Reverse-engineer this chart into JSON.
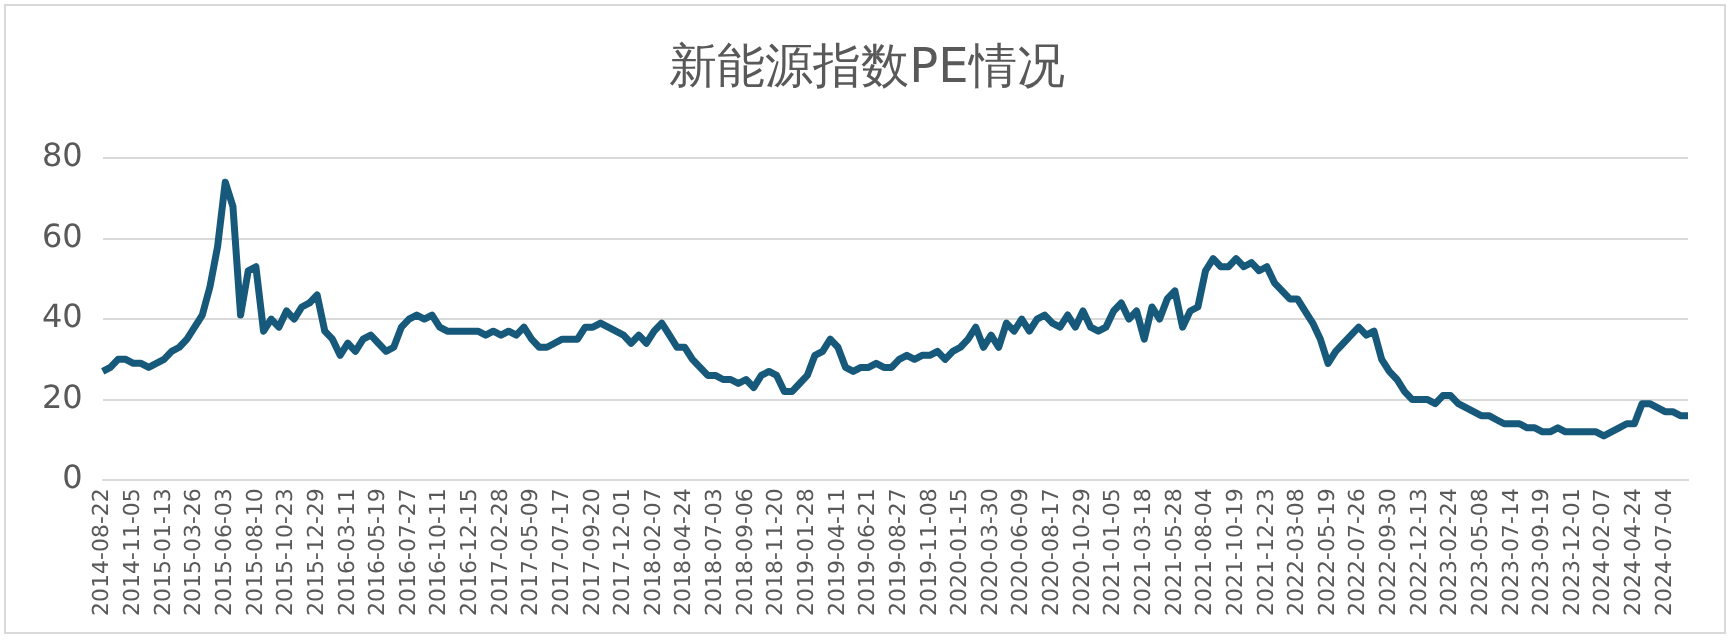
{
  "chart_data": {
    "type": "line",
    "title": "新能源指数PE情况",
    "categories": [
      "2014-08-22",
      null,
      null,
      null,
      "2014-11-05",
      null,
      null,
      null,
      "2015-01-13",
      null,
      null,
      null,
      "2015-03-26",
      null,
      null,
      null,
      "2015-06-03",
      null,
      null,
      null,
      "2015-08-10",
      null,
      null,
      null,
      "2015-10-23",
      null,
      null,
      null,
      "2015-12-29",
      null,
      null,
      null,
      "2016-03-11",
      null,
      null,
      null,
      "2016-05-19",
      null,
      null,
      null,
      "2016-07-27",
      null,
      null,
      null,
      "2016-10-11",
      null,
      null,
      null,
      "2016-12-15",
      null,
      null,
      null,
      "2017-02-28",
      null,
      null,
      null,
      "2017-05-09",
      null,
      null,
      null,
      "2017-07-17",
      null,
      null,
      null,
      "2017-09-20",
      null,
      null,
      null,
      "2017-12-01",
      null,
      null,
      null,
      "2018-02-07",
      null,
      null,
      null,
      "2018-04-24",
      null,
      null,
      null,
      "2018-07-03",
      null,
      null,
      null,
      "2018-09-06",
      null,
      null,
      null,
      "2018-11-20",
      null,
      null,
      null,
      "2019-01-28",
      null,
      null,
      null,
      "2019-04-11",
      null,
      null,
      null,
      "2019-06-21",
      null,
      null,
      null,
      "2019-08-27",
      null,
      null,
      null,
      "2019-11-08",
      null,
      null,
      null,
      "2020-01-15",
      null,
      null,
      null,
      "2020-03-30",
      null,
      null,
      null,
      "2020-06-09",
      null,
      null,
      null,
      "2020-08-17",
      null,
      null,
      null,
      "2020-10-29",
      null,
      null,
      null,
      "2021-01-05",
      null,
      null,
      null,
      "2021-03-18",
      null,
      null,
      null,
      "2021-05-28",
      null,
      null,
      null,
      "2021-08-04",
      null,
      null,
      null,
      "2021-10-19",
      null,
      null,
      null,
      "2021-12-23",
      null,
      null,
      null,
      "2022-03-08",
      null,
      null,
      null,
      "2022-05-19",
      null,
      null,
      null,
      "2022-07-26",
      null,
      null,
      null,
      "2022-09-30",
      null,
      null,
      null,
      "2022-12-13",
      null,
      null,
      null,
      "2023-02-24",
      null,
      null,
      null,
      "2023-05-08",
      null,
      null,
      null,
      "2023-07-14",
      null,
      null,
      null,
      "2023-09-19",
      null,
      null,
      null,
      "2023-12-01",
      null,
      null,
      null,
      "2024-02-07",
      null,
      null,
      null,
      "2024-04-24",
      null,
      null,
      null,
      "2024-07-04",
      null,
      null,
      null
    ],
    "series": [
      {
        "color": "#16597a",
        "values": [
          27,
          28,
          30,
          30,
          29,
          29,
          28,
          29,
          30,
          32,
          33,
          35,
          38,
          41,
          48,
          58,
          74,
          68,
          41,
          52,
          53,
          37,
          40,
          38,
          42,
          40,
          43,
          44,
          46,
          37,
          35,
          31,
          34,
          32,
          35,
          36,
          34,
          32,
          33,
          38,
          40,
          41,
          40,
          41,
          38,
          37,
          37,
          37,
          37,
          37,
          36,
          37,
          36,
          37,
          36,
          38,
          35,
          33,
          33,
          34,
          35,
          35,
          35,
          38,
          38,
          39,
          38,
          37,
          36,
          34,
          36,
          34,
          37,
          39,
          36,
          33,
          33,
          30,
          28,
          26,
          26,
          25,
          25,
          24,
          25,
          23,
          26,
          27,
          26,
          22,
          22,
          24,
          26,
          31,
          32,
          35,
          33,
          28,
          27,
          28,
          28,
          29,
          28,
          28,
          30,
          31,
          30,
          31,
          31,
          32,
          30,
          32,
          33,
          35,
          38,
          33,
          36,
          33,
          39,
          37,
          40,
          37,
          40,
          41,
          39,
          38,
          41,
          38,
          42,
          38,
          37,
          38,
          42,
          44,
          40,
          42,
          35,
          43,
          40,
          45,
          47,
          38,
          42,
          43,
          52,
          55,
          53,
          53,
          55,
          53,
          54,
          52,
          53,
          49,
          47,
          45,
          45,
          42,
          39,
          35,
          29,
          32,
          34,
          36,
          38,
          36,
          37,
          30,
          27,
          25,
          22,
          20,
          20,
          20,
          19,
          21,
          21,
          19,
          18,
          17,
          16,
          16,
          15,
          14,
          14,
          14,
          13,
          13,
          12,
          12,
          13,
          12,
          12,
          12,
          12,
          12,
          11,
          12,
          13,
          14,
          14,
          19,
          19,
          18,
          17,
          17,
          16,
          16
        ]
      }
    ],
    "ylim": [
      0,
      80
    ],
    "yticks": [
      0,
      20,
      40,
      60,
      80
    ],
    "grid": "y",
    "legend": false,
    "marker": "none",
    "line_style": "solid"
  }
}
